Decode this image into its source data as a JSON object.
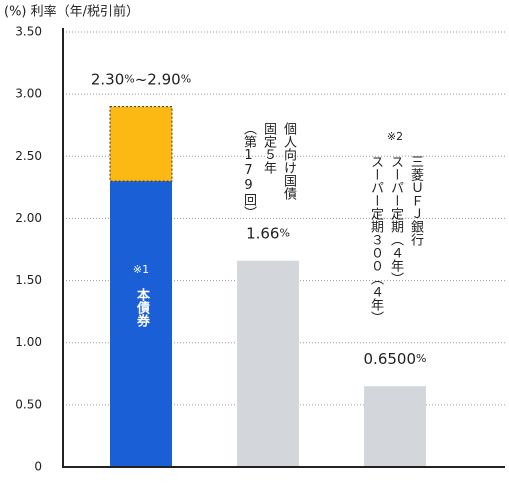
{
  "chart_data": {
    "type": "bar",
    "y_label": "(%) 利率（年/税引前）",
    "ylim": [
      0,
      3.5
    ],
    "yticks": [
      0,
      {
        "value": 0.5,
        "label": "0.50"
      },
      {
        "value": 1,
        "label": "1.00"
      },
      {
        "value": 1.5,
        "label": "1.50"
      },
      {
        "value": 2,
        "label": "2.00"
      },
      {
        "value": 2.5,
        "label": "2.50"
      },
      {
        "value": 3,
        "label": "3.00"
      },
      {
        "value": 3.5,
        "label": "3.50"
      }
    ],
    "grid": true,
    "categories": [
      {
        "note": "※1",
        "lines": [
          "本債券"
        ]
      },
      {
        "lines": [
          "個人向け国債",
          "固定５年",
          "（第179回）"
        ]
      },
      {
        "note": "※2",
        "lines": [
          "三菱ＵＦＪ銀行",
          "スーパー定期（４年）",
          "スーパー定期３００（４年）"
        ]
      }
    ],
    "series": [
      {
        "values": [
          2.3,
          1.66,
          0.65
        ],
        "colors": [
          "#1a5fd6",
          "#d3d6db",
          "#d3d6db"
        ],
        "value_labels": [
          "2.30%~2.90%",
          "1.66%",
          "0.6500%"
        ]
      },
      {
        "values": [
          0.6,
          null,
          null
        ],
        "color": "#fdb913"
      }
    ]
  }
}
